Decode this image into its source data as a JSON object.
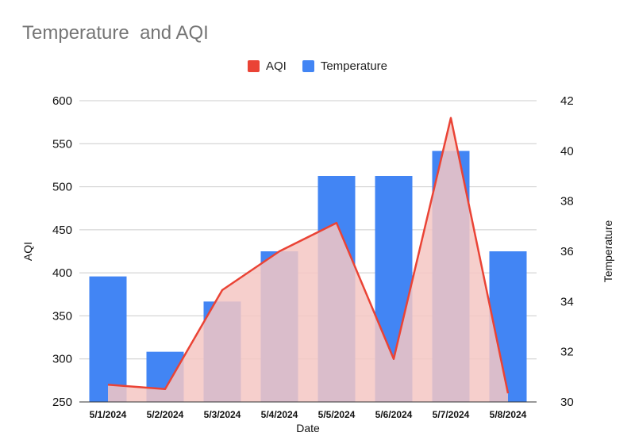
{
  "chart_data": {
    "type": "bar+line",
    "title": "Temperature  and AQI",
    "categories": [
      "5/1/2024",
      "5/2/2024",
      "5/3/2024",
      "5/4/2024",
      "5/5/2024",
      "5/6/2024",
      "5/7/2024",
      "5/8/2024"
    ],
    "series": [
      {
        "name": "AQI",
        "type": "area-line",
        "axis": "left",
        "color": "#ea4335",
        "fill": "#f4c7c3",
        "values": [
          270,
          265,
          380,
          425,
          458,
          300,
          580,
          260
        ]
      },
      {
        "name": "Temperature",
        "type": "bar",
        "axis": "right",
        "color": "#4285f4",
        "values": [
          35,
          32,
          34,
          36,
          39,
          39,
          40,
          36
        ]
      }
    ],
    "xlabel": "Date",
    "ylabel_left": "AQI",
    "ylabel_right": "Temperature",
    "ylim_left": [
      250,
      600
    ],
    "yticks_left": [
      250,
      300,
      350,
      400,
      450,
      500,
      550,
      600
    ],
    "ylim_right": [
      30,
      42
    ],
    "yticks_right": [
      30,
      32,
      34,
      36,
      38,
      40,
      42
    ],
    "grid": true,
    "legend_position": "top"
  }
}
